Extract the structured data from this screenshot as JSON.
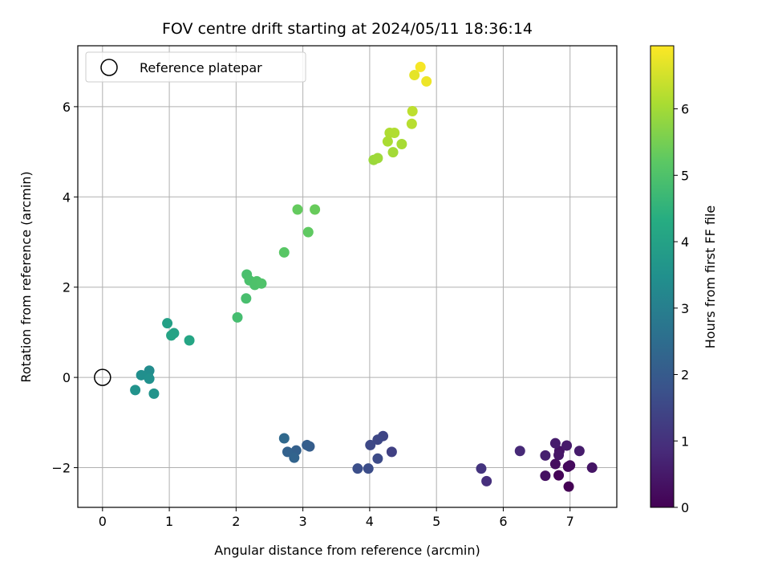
{
  "chart_data": {
    "type": "scatter",
    "title": "FOV centre drift starting at 2024/05/11 18:36:14",
    "xlabel": "Angular distance from reference (arcmin)",
    "ylabel": "Rotation from reference (arcmin)",
    "xlim": [
      -0.37,
      7.7
    ],
    "ylim": [
      -2.88,
      7.35
    ],
    "xticks": [
      0,
      1,
      2,
      3,
      4,
      5,
      6,
      7
    ],
    "xtick_labels": [
      "0",
      "1",
      "2",
      "3",
      "4",
      "5",
      "6",
      "7"
    ],
    "yticks": [
      -2,
      0,
      2,
      4,
      6
    ],
    "ytick_labels": [
      "−2",
      "0",
      "2",
      "4",
      "6"
    ],
    "grid": true,
    "legend": {
      "position": "top-left",
      "entries": [
        "Reference platepar"
      ]
    },
    "colormap": "viridis",
    "colorbar": {
      "label": "Hours from first FF file",
      "range": [
        0,
        6.95
      ],
      "ticks": [
        0,
        1,
        2,
        3,
        4,
        5,
        6
      ],
      "tick_labels": [
        "0",
        "1",
        "2",
        "3",
        "4",
        "5",
        "6"
      ]
    },
    "reference_point": {
      "name": "Reference platepar",
      "x": 0,
      "y": 0
    },
    "points": [
      {
        "x": 6.98,
        "y": -2.42,
        "c": 0.0
      },
      {
        "x": 6.83,
        "y": -2.17,
        "c": 0.07
      },
      {
        "x": 6.97,
        "y": -1.98,
        "c": 0.14
      },
      {
        "x": 7.0,
        "y": -1.95,
        "c": 0.2
      },
      {
        "x": 6.78,
        "y": -1.92,
        "c": 0.26
      },
      {
        "x": 6.63,
        "y": -2.18,
        "c": 0.33
      },
      {
        "x": 6.84,
        "y": -1.63,
        "c": 0.38
      },
      {
        "x": 6.83,
        "y": -1.72,
        "c": 0.44
      },
      {
        "x": 6.95,
        "y": -1.51,
        "c": 0.5
      },
      {
        "x": 6.78,
        "y": -1.46,
        "c": 0.56
      },
      {
        "x": 6.63,
        "y": -1.73,
        "c": 0.62
      },
      {
        "x": 7.14,
        "y": -1.63,
        "c": 0.55
      },
      {
        "x": 7.33,
        "y": -2.0,
        "c": 0.4
      },
      {
        "x": 6.25,
        "y": -1.63,
        "c": 0.8
      },
      {
        "x": 5.75,
        "y": -2.3,
        "c": 0.95
      },
      {
        "x": 5.67,
        "y": -2.02,
        "c": 1.05
      },
      {
        "x": 4.33,
        "y": -1.65,
        "c": 1.35
      },
      {
        "x": 4.2,
        "y": -1.3,
        "c": 1.45
      },
      {
        "x": 4.12,
        "y": -1.38,
        "c": 1.5
      },
      {
        "x": 4.01,
        "y": -1.5,
        "c": 1.55
      },
      {
        "x": 4.12,
        "y": -1.8,
        "c": 1.6
      },
      {
        "x": 3.98,
        "y": -2.02,
        "c": 1.65
      },
      {
        "x": 3.82,
        "y": -2.02,
        "c": 1.7
      },
      {
        "x": 3.1,
        "y": -1.53,
        "c": 2.05
      },
      {
        "x": 3.06,
        "y": -1.5,
        "c": 2.1
      },
      {
        "x": 2.9,
        "y": -1.62,
        "c": 2.15
      },
      {
        "x": 2.77,
        "y": -1.65,
        "c": 2.2
      },
      {
        "x": 2.87,
        "y": -1.78,
        "c": 2.25
      },
      {
        "x": 2.72,
        "y": -1.35,
        "c": 2.4
      },
      {
        "x": 0.7,
        "y": 0.15,
        "c": 3.35
      },
      {
        "x": 0.68,
        "y": 0.05,
        "c": 3.4
      },
      {
        "x": 0.58,
        "y": 0.05,
        "c": 3.45
      },
      {
        "x": 0.7,
        "y": -0.03,
        "c": 3.5
      },
      {
        "x": 0.49,
        "y": -0.28,
        "c": 3.55
      },
      {
        "x": 0.77,
        "y": -0.36,
        "c": 3.6
      },
      {
        "x": 0.97,
        "y": 1.2,
        "c": 3.95
      },
      {
        "x": 1.07,
        "y": 0.98,
        "c": 4.0
      },
      {
        "x": 1.03,
        "y": 0.93,
        "c": 4.05
      },
      {
        "x": 1.3,
        "y": 0.82,
        "c": 4.1
      },
      {
        "x": 2.02,
        "y": 1.33,
        "c": 4.85
      },
      {
        "x": 2.15,
        "y": 1.75,
        "c": 4.9
      },
      {
        "x": 2.16,
        "y": 2.28,
        "c": 4.92
      },
      {
        "x": 2.2,
        "y": 2.15,
        "c": 4.95
      },
      {
        "x": 2.28,
        "y": 2.05,
        "c": 4.98
      },
      {
        "x": 2.31,
        "y": 2.13,
        "c": 5.0
      },
      {
        "x": 2.38,
        "y": 2.08,
        "c": 5.02
      },
      {
        "x": 2.72,
        "y": 2.77,
        "c": 5.15
      },
      {
        "x": 3.08,
        "y": 3.22,
        "c": 5.25
      },
      {
        "x": 2.92,
        "y": 3.72,
        "c": 5.3
      },
      {
        "x": 3.18,
        "y": 3.72,
        "c": 5.35
      },
      {
        "x": 4.06,
        "y": 4.82,
        "c": 5.9
      },
      {
        "x": 4.12,
        "y": 4.86,
        "c": 5.95
      },
      {
        "x": 4.35,
        "y": 4.99,
        "c": 6.0
      },
      {
        "x": 4.48,
        "y": 5.17,
        "c": 6.05
      },
      {
        "x": 4.27,
        "y": 5.23,
        "c": 6.08
      },
      {
        "x": 4.3,
        "y": 5.42,
        "c": 6.12
      },
      {
        "x": 4.37,
        "y": 5.42,
        "c": 6.15
      },
      {
        "x": 4.63,
        "y": 5.62,
        "c": 6.22
      },
      {
        "x": 4.64,
        "y": 5.9,
        "c": 6.28
      },
      {
        "x": 4.67,
        "y": 6.7,
        "c": 6.7
      },
      {
        "x": 4.85,
        "y": 6.56,
        "c": 6.78
      },
      {
        "x": 4.76,
        "y": 6.88,
        "c": 6.88
      }
    ]
  }
}
